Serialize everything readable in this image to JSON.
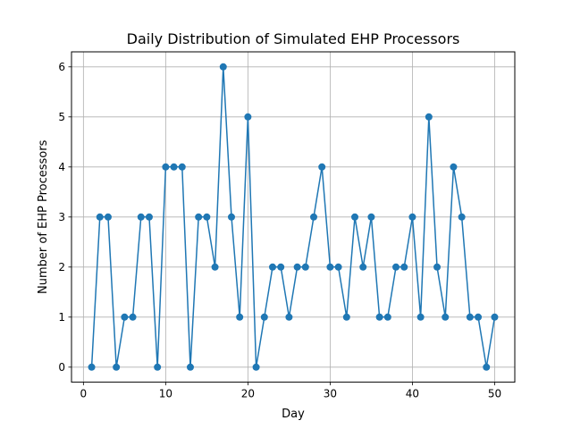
{
  "chart_data": {
    "type": "line",
    "title": "Daily Distribution of Simulated EHP Processors",
    "xlabel": "Day",
    "ylabel": "Number of EHP Processors",
    "xlim": [
      -1.45,
      52.45
    ],
    "ylim": [
      -0.3,
      6.3
    ],
    "xticks": [
      0,
      10,
      20,
      30,
      40,
      50
    ],
    "yticks": [
      0,
      1,
      2,
      3,
      4,
      5,
      6
    ],
    "grid": true,
    "color": "#1f77b4",
    "series": [
      {
        "x": [
          1,
          2,
          3,
          4,
          5,
          6,
          7,
          8,
          9,
          10,
          11,
          12,
          13,
          14,
          15,
          16,
          17,
          18,
          19,
          20,
          21,
          22,
          23,
          24,
          25,
          26,
          27,
          28,
          29,
          30,
          31,
          32,
          33,
          34,
          35,
          36,
          37,
          38,
          39,
          40,
          41,
          42,
          43,
          44,
          45,
          46,
          47,
          48,
          49,
          50
        ],
        "values": [
          0,
          3,
          3,
          0,
          1,
          1,
          3,
          3,
          0,
          4,
          4,
          4,
          0,
          3,
          3,
          2,
          6,
          3,
          1,
          5,
          0,
          1,
          2,
          2,
          1,
          2,
          2,
          3,
          4,
          2,
          2,
          1,
          3,
          2,
          3,
          1,
          1,
          2,
          2,
          3,
          1,
          5,
          2,
          1,
          4,
          3,
          1,
          1,
          0,
          1
        ]
      }
    ]
  }
}
